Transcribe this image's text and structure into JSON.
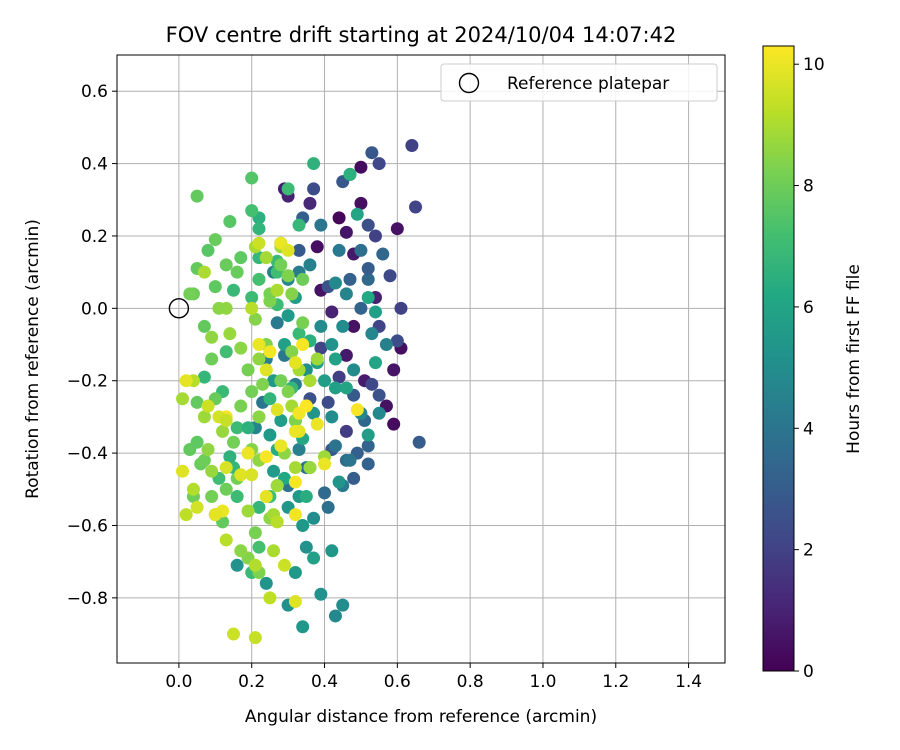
{
  "chart_data": {
    "type": "scatter",
    "title": "FOV centre drift starting at 2024/10/04 14:07:42",
    "xlabel": "Angular distance from reference (arcmin)",
    "ylabel": "Rotation from reference (arcmin)",
    "xlim": [
      -0.17,
      1.5
    ],
    "ylim": [
      -0.98,
      0.7
    ],
    "xticks": [
      0.0,
      0.2,
      0.4,
      0.6,
      0.8,
      1.0,
      1.2,
      1.4
    ],
    "xtick_labels": [
      "0.0",
      "0.2",
      "0.4",
      "0.6",
      "0.8",
      "1.0",
      "1.2",
      "1.4"
    ],
    "yticks": [
      -0.8,
      -0.6,
      -0.4,
      -0.2,
      0.0,
      0.2,
      0.4,
      0.6
    ],
    "ytick_labels": [
      "−0.8",
      "−0.6",
      "−0.4",
      "−0.2",
      "0.0",
      "0.2",
      "0.4",
      "0.6"
    ],
    "grid": true,
    "legend": {
      "position": "top-right",
      "label": "Reference platepar"
    },
    "reference_point": {
      "x": 0.0,
      "y": 0.0
    },
    "colorbar": {
      "label": "Hours from first FF file",
      "colormap": "viridis",
      "range": [
        0,
        10.3
      ],
      "ticks": [
        0,
        2,
        4,
        6,
        8,
        10
      ],
      "tick_labels": [
        "0",
        "2",
        "4",
        "6",
        "8",
        "10"
      ]
    },
    "points": [
      [
        0.5,
        0.39,
        0.3
      ],
      [
        0.5,
        0.29,
        0.4
      ],
      [
        0.6,
        0.22,
        0.5
      ],
      [
        0.44,
        0.25,
        0.2
      ],
      [
        0.46,
        0.21,
        0.6
      ],
      [
        0.38,
        0.17,
        0.4
      ],
      [
        0.48,
        0.15,
        0.7
      ],
      [
        0.54,
        0.03,
        0.9
      ],
      [
        0.61,
        -0.11,
        0.4
      ],
      [
        0.59,
        -0.17,
        0.6
      ],
      [
        0.57,
        -0.27,
        0.5
      ],
      [
        0.59,
        -0.32,
        0.3
      ],
      [
        0.51,
        -0.2,
        0.8
      ],
      [
        0.48,
        -0.05,
        0.5
      ],
      [
        0.46,
        -0.13,
        0.7
      ],
      [
        0.42,
        -0.01,
        1.0
      ],
      [
        0.39,
        0.05,
        0.5
      ],
      [
        0.3,
        0.31,
        1.0
      ],
      [
        0.29,
        0.33,
        0.8
      ],
      [
        0.36,
        0.29,
        1.2
      ],
      [
        0.53,
        0.43,
        2.8
      ],
      [
        0.55,
        0.4,
        2.2
      ],
      [
        0.64,
        0.45,
        2.0
      ],
      [
        0.65,
        0.28,
        2.1
      ],
      [
        0.52,
        0.23,
        2.5
      ],
      [
        0.54,
        0.2,
        2.0
      ],
      [
        0.58,
        0.09,
        2.3
      ],
      [
        0.61,
        0.0,
        2.0
      ],
      [
        0.6,
        -0.09,
        2.4
      ],
      [
        0.55,
        -0.05,
        2.1
      ],
      [
        0.53,
        -0.21,
        2.2
      ],
      [
        0.55,
        -0.24,
        2.6
      ],
      [
        0.46,
        -0.34,
        1.8
      ],
      [
        0.41,
        -0.26,
        2.4
      ],
      [
        0.44,
        -0.19,
        1.9
      ],
      [
        0.39,
        -0.11,
        2.1
      ],
      [
        0.36,
        -0.25,
        2.5
      ],
      [
        0.37,
        0.33,
        2.4
      ],
      [
        0.45,
        0.35,
        2.8
      ],
      [
        0.41,
        0.06,
        2.6
      ],
      [
        0.33,
        0.16,
        2.9
      ],
      [
        0.48,
        -0.47,
        3.0
      ],
      [
        0.52,
        -0.43,
        3.2
      ],
      [
        0.66,
        -0.37,
        3.0
      ],
      [
        0.52,
        -0.38,
        3.3
      ],
      [
        0.49,
        -0.4,
        3.1
      ],
      [
        0.48,
        -0.24,
        2.9
      ],
      [
        0.51,
        -0.31,
        3.4
      ],
      [
        0.47,
        0.08,
        3.2
      ],
      [
        0.5,
        0.0,
        3.3
      ],
      [
        0.52,
        0.08,
        3.5
      ],
      [
        0.34,
        0.25,
        3.1
      ],
      [
        0.42,
        -0.39,
        2.8
      ],
      [
        0.52,
        0.11,
        3.0
      ],
      [
        0.56,
        0.15,
        3.4
      ],
      [
        0.47,
        0.37,
        4.0
      ],
      [
        0.44,
        0.16,
        4.2
      ],
      [
        0.5,
        0.16,
        3.8
      ],
      [
        0.39,
        0.23,
        4.0
      ],
      [
        0.46,
        -0.42,
        3.6
      ],
      [
        0.4,
        -0.51,
        3.6
      ],
      [
        0.41,
        -0.55,
        3.8
      ],
      [
        0.47,
        -0.42,
        4.0
      ],
      [
        0.45,
        -0.49,
        4.2
      ],
      [
        0.43,
        -0.38,
        3.9
      ],
      [
        0.35,
        -0.44,
        3.8
      ],
      [
        0.33,
        -0.39,
        4.4
      ],
      [
        0.3,
        -0.49,
        4.0
      ],
      [
        0.32,
        -0.21,
        4.3
      ],
      [
        0.29,
        -0.13,
        4.1
      ],
      [
        0.27,
        -0.04,
        4.2
      ],
      [
        0.24,
        -0.14,
        4.4
      ],
      [
        0.26,
        0.1,
        4.5
      ],
      [
        0.23,
        -0.26,
        4.0
      ],
      [
        0.21,
        -0.33,
        4.6
      ],
      [
        0.3,
        0.08,
        4.7
      ],
      [
        0.33,
        0.1,
        4.3
      ],
      [
        0.36,
        0.12,
        4.5
      ],
      [
        0.43,
        0.07,
        4.8
      ],
      [
        0.46,
        0.04,
        4.6
      ],
      [
        0.53,
        -0.07,
        4.7
      ],
      [
        0.57,
        -0.1,
        4.5
      ],
      [
        0.55,
        -0.29,
        4.8
      ],
      [
        0.5,
        -0.29,
        4.7
      ],
      [
        0.48,
        -0.17,
        4.9
      ],
      [
        0.45,
        -0.05,
        5.0
      ],
      [
        0.42,
        -0.1,
        5.2
      ],
      [
        0.39,
        -0.05,
        4.9
      ],
      [
        0.35,
        -0.17,
        5.1
      ],
      [
        0.37,
        -0.29,
        5.3
      ],
      [
        0.42,
        -0.3,
        5.0
      ],
      [
        0.44,
        -0.48,
        5.3
      ],
      [
        0.37,
        -0.58,
        5.0
      ],
      [
        0.35,
        -0.66,
        5.2
      ],
      [
        0.42,
        -0.67,
        5.4
      ],
      [
        0.45,
        -0.82,
        5.0
      ],
      [
        0.43,
        -0.85,
        4.8
      ],
      [
        0.39,
        -0.79,
        5.2
      ],
      [
        0.34,
        -0.88,
        5.4
      ],
      [
        0.3,
        -0.82,
        5.1
      ],
      [
        0.24,
        -0.76,
        5.3
      ],
      [
        0.16,
        -0.71,
        5.2
      ],
      [
        0.32,
        -0.73,
        5.5
      ],
      [
        0.34,
        -0.6,
        5.4
      ],
      [
        0.33,
        -0.52,
        5.5
      ],
      [
        0.3,
        -0.55,
        5.4
      ],
      [
        0.26,
        -0.45,
        5.6
      ],
      [
        0.25,
        -0.35,
        5.5
      ],
      [
        0.28,
        -0.31,
        5.7
      ],
      [
        0.26,
        -0.2,
        5.5
      ],
      [
        0.29,
        -0.1,
        5.8
      ],
      [
        0.3,
        -0.02,
        5.6
      ],
      [
        0.32,
        0.03,
        5.7
      ],
      [
        0.38,
        -0.15,
        5.8
      ],
      [
        0.4,
        -0.2,
        5.7
      ],
      [
        0.43,
        -0.22,
        5.8
      ],
      [
        0.43,
        -0.14,
        5.9
      ],
      [
        0.46,
        -0.22,
        6.0
      ],
      [
        0.52,
        -0.35,
        5.7
      ],
      [
        0.54,
        -0.15,
        6.0
      ],
      [
        0.54,
        -0.01,
        5.8
      ],
      [
        0.52,
        0.03,
        6.2
      ],
      [
        0.49,
        0.26,
        6.0
      ],
      [
        0.47,
        0.37,
        6.5
      ],
      [
        0.37,
        0.4,
        6.6
      ],
      [
        0.3,
        0.33,
        7.0
      ],
      [
        0.33,
        0.23,
        6.8
      ],
      [
        0.22,
        0.25,
        6.5
      ],
      [
        0.22,
        0.22,
        6.7
      ],
      [
        0.27,
        0.13,
        6.9
      ],
      [
        0.28,
        0.18,
        7.0
      ],
      [
        0.22,
        0.14,
        6.8
      ],
      [
        0.27,
        0.1,
        7.1
      ],
      [
        0.15,
        0.05,
        6.9
      ],
      [
        0.22,
        0.08,
        7.2
      ],
      [
        0.2,
        0.03,
        7.0
      ],
      [
        0.07,
        -0.19,
        6.8
      ],
      [
        0.12,
        -0.23,
        6.9
      ],
      [
        0.13,
        -0.12,
        7.1
      ],
      [
        0.16,
        -0.33,
        7.0
      ],
      [
        0.15,
        -0.44,
        6.8
      ],
      [
        0.11,
        -0.47,
        7.1
      ],
      [
        0.16,
        -0.52,
        7.0
      ],
      [
        0.22,
        -0.55,
        6.8
      ],
      [
        0.25,
        -0.52,
        7.1
      ],
      [
        0.22,
        -0.66,
        7.2
      ],
      [
        0.2,
        -0.73,
        6.9
      ],
      [
        0.37,
        -0.69,
        5.8
      ],
      [
        0.29,
        -0.47,
        6.2
      ],
      [
        0.27,
        -0.39,
        6.3
      ],
      [
        0.32,
        -0.31,
        6.4
      ],
      [
        0.34,
        -0.36,
        6.2
      ],
      [
        0.36,
        -0.44,
        6.5
      ],
      [
        0.35,
        -0.52,
        6.4
      ],
      [
        0.19,
        -0.33,
        6.5
      ],
      [
        0.14,
        -0.41,
        6.6
      ],
      [
        0.25,
        -0.25,
        6.7
      ],
      [
        0.31,
        -0.22,
        6.8
      ],
      [
        0.36,
        -0.09,
        6.5
      ],
      [
        0.33,
        -0.07,
        6.9
      ],
      [
        0.27,
        0.01,
        7.0
      ],
      [
        0.2,
        0.27,
        7.2
      ],
      [
        0.2,
        0.36,
        7.5
      ],
      [
        0.14,
        0.24,
        7.6
      ],
      [
        0.05,
        0.31,
        7.8
      ],
      [
        0.1,
        0.19,
        7.9
      ],
      [
        0.04,
        0.04,
        8.0
      ],
      [
        0.03,
        0.04,
        8.1
      ],
      [
        0.05,
        0.11,
        7.8
      ],
      [
        0.1,
        0.06,
        7.7
      ],
      [
        0.08,
        0.16,
        7.6
      ],
      [
        0.13,
        0.12,
        7.9
      ],
      [
        0.17,
        0.14,
        7.7
      ],
      [
        0.16,
        0.1,
        7.9
      ],
      [
        0.07,
        -0.05,
        7.8
      ],
      [
        0.09,
        -0.14,
        8.0
      ],
      [
        0.1,
        -0.25,
        7.9
      ],
      [
        0.05,
        -0.26,
        7.8
      ],
      [
        0.05,
        -0.37,
        7.7
      ],
      [
        0.03,
        -0.39,
        7.8
      ],
      [
        0.06,
        -0.43,
        7.9
      ],
      [
        0.07,
        -0.42,
        8.0
      ],
      [
        0.04,
        -0.52,
        8.0
      ],
      [
        0.09,
        -0.52,
        8.1
      ],
      [
        0.1,
        -0.57,
        7.9
      ],
      [
        0.12,
        -0.59,
        7.8
      ],
      [
        0.13,
        -0.5,
        8.0
      ],
      [
        0.16,
        -0.47,
        8.1
      ],
      [
        0.15,
        -0.37,
        8.1
      ],
      [
        0.17,
        -0.27,
        8.2
      ],
      [
        0.2,
        -0.23,
        8.1
      ],
      [
        0.23,
        -0.21,
        8.3
      ],
      [
        0.19,
        -0.17,
        8.2
      ],
      [
        0.24,
        -0.1,
        8.3
      ],
      [
        0.21,
        -0.03,
        8.4
      ],
      [
        0.25,
        0.02,
        8.3
      ],
      [
        0.25,
        0.04,
        8.2
      ],
      [
        0.28,
        0.12,
        8.1
      ],
      [
        0.3,
        0.09,
        8.3
      ],
      [
        0.34,
        0.08,
        8.0
      ],
      [
        0.31,
        0.04,
        8.4
      ],
      [
        0.34,
        -0.04,
        8.2
      ],
      [
        0.31,
        -0.12,
        8.4
      ],
      [
        0.28,
        -0.2,
        8.1
      ],
      [
        0.3,
        -0.23,
        8.3
      ],
      [
        0.32,
        -0.31,
        8.3
      ],
      [
        0.29,
        -0.4,
        8.5
      ],
      [
        0.27,
        -0.49,
        8.3
      ],
      [
        0.25,
        -0.58,
        8.5
      ],
      [
        0.21,
        -0.62,
        8.2
      ],
      [
        0.19,
        -0.69,
        8.4
      ],
      [
        0.22,
        -0.73,
        8.3
      ],
      [
        0.17,
        -0.67,
        8.5
      ],
      [
        0.22,
        -0.42,
        8.6
      ],
      [
        0.2,
        -0.39,
        8.4
      ],
      [
        0.22,
        -0.3,
        8.5
      ],
      [
        0.22,
        -0.14,
        8.6
      ],
      [
        0.17,
        -0.11,
        8.5
      ],
      [
        0.14,
        -0.07,
        8.7
      ],
      [
        0.13,
        0.0,
        8.6
      ],
      [
        0.11,
        0.0,
        8.5
      ],
      [
        0.09,
        -0.08,
        8.6
      ],
      [
        0.12,
        -0.34,
        8.7
      ],
      [
        0.08,
        -0.39,
        8.6
      ],
      [
        0.07,
        -0.3,
        8.8
      ],
      [
        0.09,
        -0.45,
        8.7
      ],
      [
        0.19,
        -0.56,
        8.8
      ],
      [
        0.26,
        -0.57,
        8.9
      ],
      [
        0.27,
        -0.49,
        8.8
      ],
      [
        0.32,
        -0.44,
        8.9
      ],
      [
        0.36,
        -0.44,
        8.7
      ],
      [
        0.4,
        -0.41,
        8.8
      ],
      [
        0.31,
        -0.27,
        8.9
      ],
      [
        0.36,
        -0.2,
        9.0
      ],
      [
        0.33,
        -0.17,
        8.9
      ],
      [
        0.38,
        -0.14,
        8.8
      ],
      [
        0.28,
        0.17,
        8.8
      ],
      [
        0.24,
        0.14,
        8.9
      ],
      [
        0.27,
        0.05,
        9.0
      ],
      [
        0.21,
        0.17,
        9.0
      ],
      [
        0.07,
        0.1,
        9.0
      ],
      [
        0.04,
        -0.2,
        9.2
      ],
      [
        0.01,
        -0.25,
        8.9
      ],
      [
        0.04,
        -0.5,
        9.1
      ],
      [
        0.02,
        -0.57,
        9.3
      ],
      [
        0.13,
        -0.64,
        9.2
      ],
      [
        0.21,
        -0.71,
        9.1
      ],
      [
        0.26,
        -0.67,
        9.0
      ],
      [
        0.27,
        -0.59,
        9.2
      ],
      [
        0.25,
        -0.8,
        9.3
      ],
      [
        0.29,
        -0.71,
        9.5
      ],
      [
        0.32,
        -0.81,
        9.8
      ],
      [
        0.21,
        -0.91,
        9.4
      ],
      [
        0.15,
        -0.9,
        9.5
      ],
      [
        0.05,
        -0.55,
        9.6
      ],
      [
        0.08,
        -0.27,
        9.5
      ],
      [
        0.01,
        -0.45,
        9.8
      ],
      [
        0.02,
        -0.2,
        9.9
      ],
      [
        0.13,
        -0.44,
        9.7
      ],
      [
        0.17,
        -0.46,
        9.8
      ],
      [
        0.12,
        -0.56,
        10.0
      ],
      [
        0.24,
        -0.52,
        9.9
      ],
      [
        0.32,
        -0.57,
        10.1
      ],
      [
        0.32,
        -0.48,
        10.2
      ],
      [
        0.4,
        -0.43,
        10.0
      ],
      [
        0.33,
        -0.34,
        9.9
      ],
      [
        0.27,
        -0.28,
        9.8
      ],
      [
        0.33,
        -0.29,
        10.1
      ],
      [
        0.35,
        -0.27,
        9.7
      ],
      [
        0.38,
        -0.32,
        10.0
      ],
      [
        0.49,
        -0.28,
        10.2
      ],
      [
        0.24,
        -0.17,
        9.8
      ],
      [
        0.25,
        -0.12,
        10.1
      ],
      [
        0.22,
        -0.1,
        10.0
      ],
      [
        0.32,
        -0.15,
        9.9
      ],
      [
        0.34,
        -0.1,
        10.2
      ],
      [
        0.35,
        -0.27,
        10.3
      ],
      [
        0.28,
        -0.38,
        10.0
      ],
      [
        0.13,
        -0.3,
        10.1
      ],
      [
        0.19,
        -0.4,
        10.0
      ],
      [
        0.2,
        -0.46,
        9.7
      ],
      [
        0.24,
        -0.41,
        10.2
      ],
      [
        0.32,
        -0.34,
        10.0
      ],
      [
        0.11,
        -0.3,
        9.6
      ],
      [
        0.28,
        0.18,
        10.0
      ],
      [
        0.3,
        0.16,
        9.8
      ],
      [
        0.22,
        0.18,
        9.5
      ],
      [
        0.13,
        -0.31,
        9.4
      ],
      [
        0.1,
        -0.57,
        9.9
      ],
      [
        0.2,
        0.0,
        9.2
      ]
    ]
  }
}
